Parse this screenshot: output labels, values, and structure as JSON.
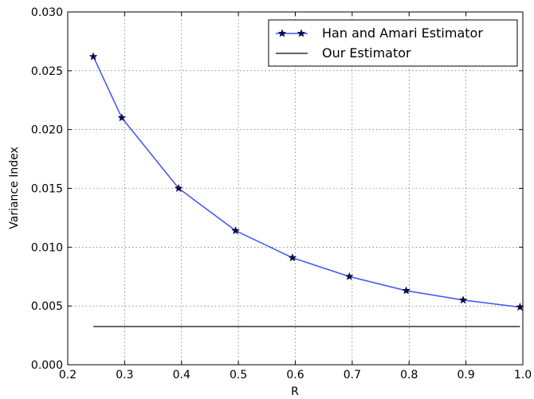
{
  "chart_data": {
    "type": "line",
    "title": "",
    "xlabel": "R",
    "ylabel": "Variance Index",
    "xlim": [
      0.2,
      1.0
    ],
    "ylim": [
      0.0,
      0.03
    ],
    "x_ticks": [
      "0.2",
      "0.3",
      "0.4",
      "0.5",
      "0.6",
      "0.7",
      "0.8",
      "0.9",
      "1.0"
    ],
    "y_ticks": [
      "0.000",
      "0.005",
      "0.010",
      "0.015",
      "0.020",
      "0.025",
      "0.030"
    ],
    "grid": true,
    "legend_position": "top-right",
    "series": [
      {
        "name": "Han and Amari Estimator",
        "color": "#3f51f5",
        "marker": "star",
        "x": [
          0.245,
          0.295,
          0.395,
          0.495,
          0.595,
          0.695,
          0.795,
          0.895,
          0.995
        ],
        "y": [
          0.0262,
          0.021,
          0.015,
          0.0114,
          0.0091,
          0.0075,
          0.0063,
          0.0055,
          0.0049
        ]
      },
      {
        "name": "Our Estimator",
        "color": "#333333",
        "marker": "none",
        "x": [
          0.245,
          0.995
        ],
        "y": [
          0.00325,
          0.00325
        ]
      }
    ]
  }
}
